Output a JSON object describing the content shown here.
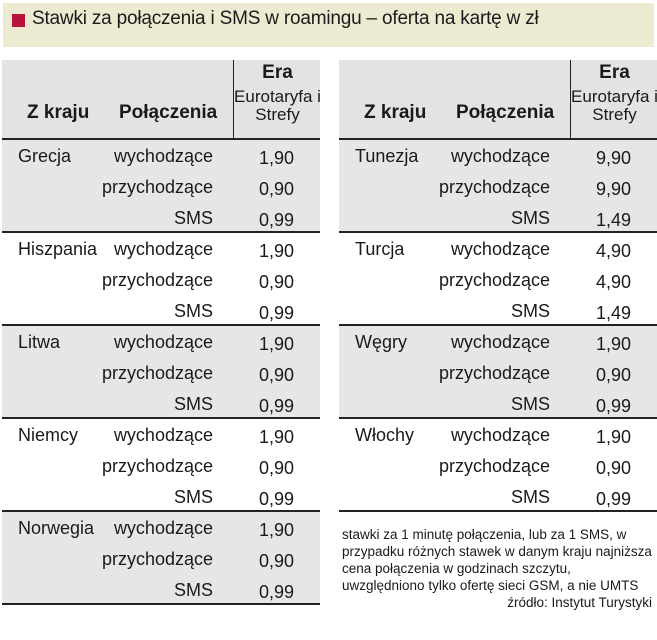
{
  "title": "Stawki za połączenia i SMS w roamingu – oferta na kartę w zł",
  "colors": {
    "accent": "#b5123c",
    "title_bg": "#ecebd2",
    "shade": "#e6e6e6"
  },
  "headers": {
    "kraj": "Z kraju",
    "polaczenia": "Połączenia",
    "operator": "Era",
    "operator_sub": "Eurotaryfa i Strefy"
  },
  "left": [
    {
      "country": "Grecja",
      "rows": [
        {
          "type": "wychodzące",
          "value": "1,90"
        },
        {
          "type": "przychodzące",
          "value": "0,90"
        },
        {
          "type": "SMS",
          "value": "0,99"
        }
      ]
    },
    {
      "country": "Hiszpania",
      "rows": [
        {
          "type": "wychodzące",
          "value": "1,90"
        },
        {
          "type": "przychodzące",
          "value": "0,90"
        },
        {
          "type": "SMS",
          "value": "0,99"
        }
      ]
    },
    {
      "country": "Litwa",
      "rows": [
        {
          "type": "wychodzące",
          "value": "1,90"
        },
        {
          "type": "przychodzące",
          "value": "0,90"
        },
        {
          "type": "SMS",
          "value": "0,99"
        }
      ]
    },
    {
      "country": "Niemcy",
      "rows": [
        {
          "type": "wychodzące",
          "value": "1,90"
        },
        {
          "type": "przychodzące",
          "value": "0,90"
        },
        {
          "type": "SMS",
          "value": "0,99"
        }
      ]
    },
    {
      "country": "Norwegia",
      "rows": [
        {
          "type": "wychodzące",
          "value": "1,90"
        },
        {
          "type": "przychodzące",
          "value": "0,90"
        },
        {
          "type": "SMS",
          "value": "0,99"
        }
      ]
    }
  ],
  "right": [
    {
      "country": "Tunezja",
      "rows": [
        {
          "type": "wychodzące",
          "value": "9,90"
        },
        {
          "type": "przychodzące",
          "value": "9,90"
        },
        {
          "type": "SMS",
          "value": "1,49"
        }
      ]
    },
    {
      "country": "Turcja",
      "rows": [
        {
          "type": "wychodzące",
          "value": "4,90"
        },
        {
          "type": "przychodzące",
          "value": "4,90"
        },
        {
          "type": "SMS",
          "value": "1,49"
        }
      ]
    },
    {
      "country": "Węgry",
      "rows": [
        {
          "type": "wychodzące",
          "value": "1,90"
        },
        {
          "type": "przychodzące",
          "value": "0,90"
        },
        {
          "type": "SMS",
          "value": "0,99"
        }
      ]
    },
    {
      "country": "Włochy",
      "rows": [
        {
          "type": "wychodzące",
          "value": "1,90"
        },
        {
          "type": "przychodzące",
          "value": "0,90"
        },
        {
          "type": "SMS",
          "value": "0,99"
        }
      ]
    }
  ],
  "footnote": "stawki za 1 minutę połączenia, lub za 1 SMS, w przypadku różnych stawek w danym kraju najniższa cena połączenia w godzinach szczytu, uwzględniono tylko ofertę sieci GSM, a nie UMTS",
  "source": "źródło: Instytut Turystyki"
}
